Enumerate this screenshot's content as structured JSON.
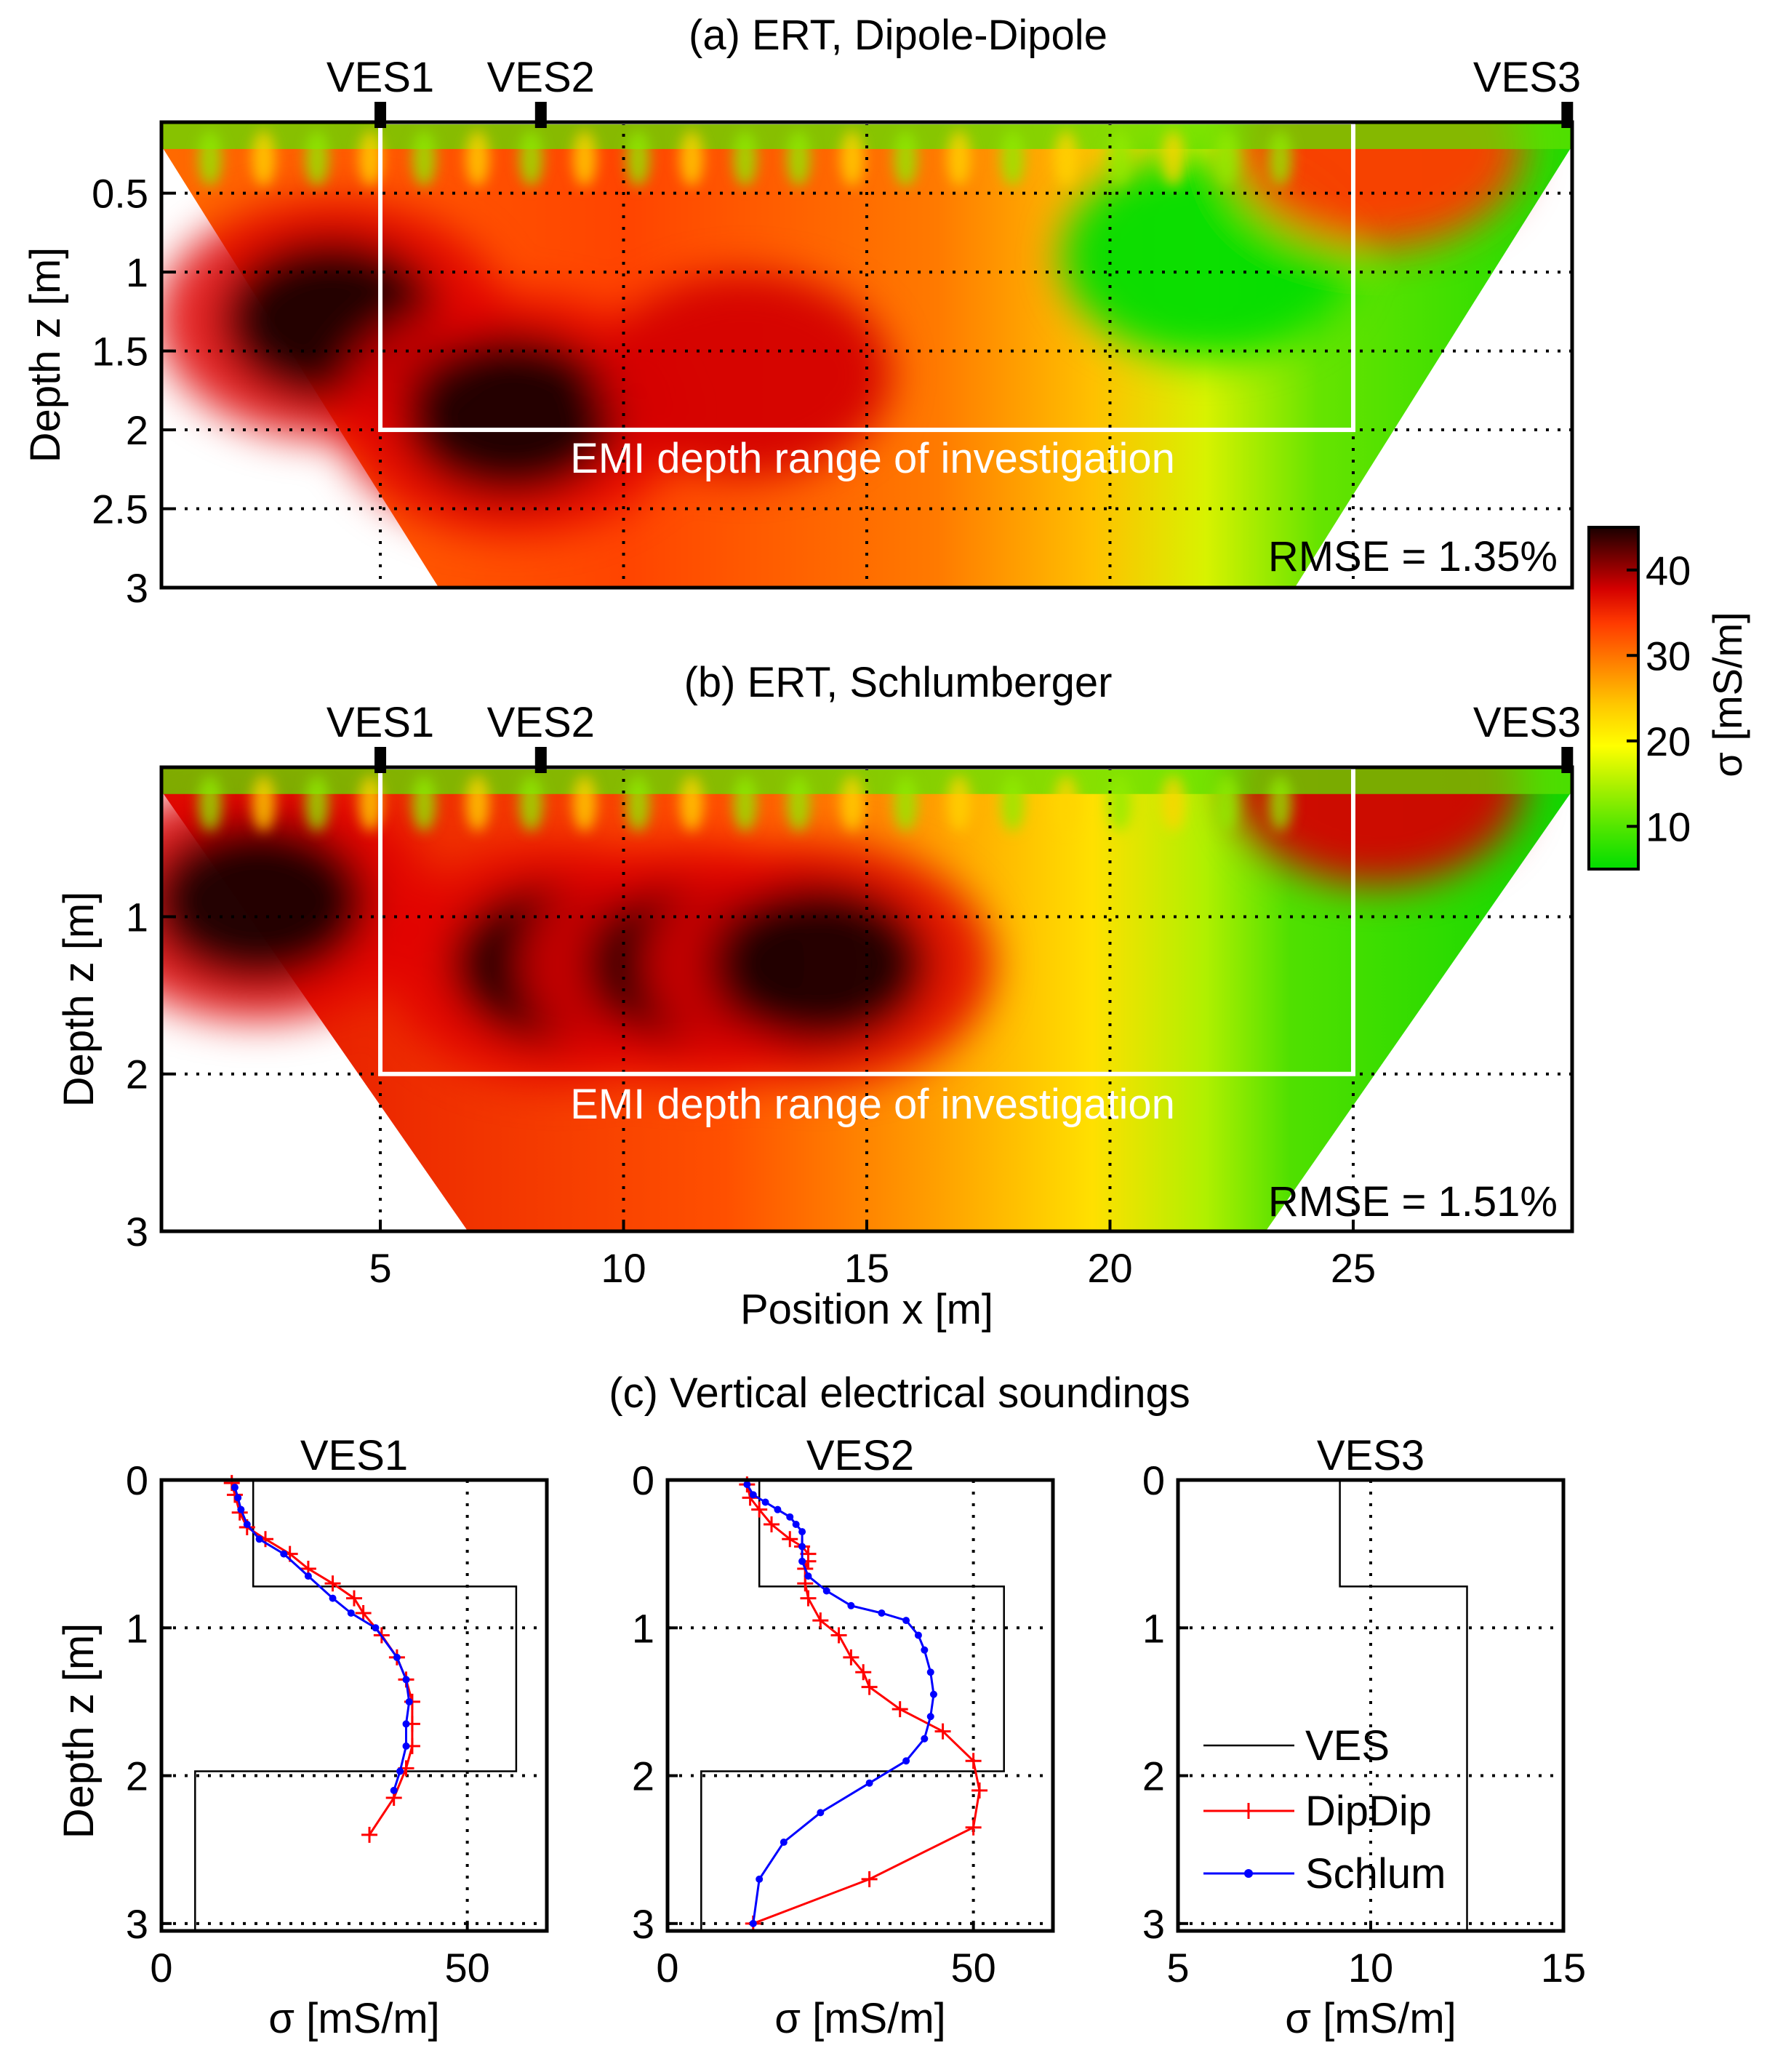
{
  "colors": {
    "ramp": [
      "#00dd00",
      "#50e600",
      "#a8f000",
      "#ffff00",
      "#ffc800",
      "#ff8200",
      "#ff3a00",
      "#d40000",
      "#780000",
      "#1a0000"
    ],
    "white": "#ffffff",
    "grid": "#000000",
    "ves": "#000000",
    "dipdip": "#ff0000",
    "schlum": "#0000ff"
  },
  "chart_data": [
    {
      "id": "a",
      "type": "heatmap",
      "title": "(a) ERT, Dipole-Dipole",
      "ylabel": "Depth z [m]",
      "xlabel": "",
      "xlim": [
        0.5,
        29.5
      ],
      "ylim": [
        3,
        0.05
      ],
      "yticks": [
        0.5,
        1,
        1.5,
        2,
        2.5,
        3
      ],
      "ytick_labels": [
        "0.5",
        "1",
        "1.5",
        "2",
        "2.5",
        "3"
      ],
      "xgrid": [
        5,
        10,
        15,
        20,
        25
      ],
      "ygrid": [
        0.5,
        1,
        1.5,
        2,
        2.5
      ],
      "ves_markers": [
        {
          "label": "VES1",
          "x": 5
        },
        {
          "label": "VES2",
          "x": 8.3
        },
        {
          "label": "VES3",
          "x": 29.4
        }
      ],
      "box": {
        "x": [
          5,
          25
        ],
        "z": [
          0.05,
          2
        ]
      },
      "box_label": "EMI depth range of investigation",
      "rmse": "RMSE = 1.35%",
      "section_left": [
        [
          0.5,
          0.2
        ],
        [
          6.2,
          3.0
        ]
      ],
      "section_right": [
        [
          29.5,
          0.2
        ],
        [
          23.8,
          3.0
        ]
      ],
      "conductivity_blobs_mS_per_m": [
        {
          "x": 4.0,
          "z": 1.3,
          "value": 45
        },
        {
          "x": 7.7,
          "z": 1.9,
          "value": 47
        },
        {
          "x": 12.5,
          "z": 1.65,
          "value": 38
        },
        {
          "x": 22.0,
          "z": 0.9,
          "value": 7
        },
        {
          "x": 25.5,
          "z": 0.2,
          "value": 30
        }
      ]
    },
    {
      "id": "b",
      "type": "heatmap",
      "title": "(b) ERT, Schlumberger",
      "ylabel": "Depth z [m]",
      "xlabel": "Position x [m]",
      "xlim": [
        0.5,
        29.5
      ],
      "ylim": [
        3,
        0.05
      ],
      "xticks": [
        5,
        10,
        15,
        20,
        25
      ],
      "xtick_labels": [
        "5",
        "10",
        "15",
        "20",
        "25"
      ],
      "yticks": [
        1,
        2,
        3
      ],
      "ytick_labels": [
        "1",
        "2",
        "3"
      ],
      "xgrid": [
        5,
        10,
        15,
        20,
        25
      ],
      "ygrid": [
        1,
        2
      ],
      "ves_markers": [
        {
          "label": "VES1",
          "x": 5
        },
        {
          "label": "VES2",
          "x": 8.3
        },
        {
          "label": "VES3",
          "x": 29.4
        }
      ],
      "box": {
        "x": [
          5,
          25
        ],
        "z": [
          0.05,
          2
        ]
      },
      "box_label": "EMI depth range of investigation",
      "rmse": "RMSE = 1.51%",
      "section_left": [
        [
          0.5,
          0.2
        ],
        [
          6.8,
          3.0
        ]
      ],
      "section_right": [
        [
          29.5,
          0.2
        ],
        [
          23.2,
          3.0
        ]
      ],
      "conductivity_blobs_mS_per_m": [
        {
          "x": 2.5,
          "z": 0.9,
          "value": 47
        },
        {
          "x": 8.7,
          "z": 1.3,
          "value": 47
        },
        {
          "x": 11.5,
          "z": 1.3,
          "value": 44
        },
        {
          "x": 14.0,
          "z": 1.3,
          "value": 44
        },
        {
          "x": 25.5,
          "z": 0.15,
          "value": 35
        }
      ]
    },
    {
      "id": "colorbar",
      "type": "colorbar",
      "label": "σ [mS/m]",
      "range": [
        5,
        45
      ],
      "ticks": [
        10,
        20,
        30,
        40
      ],
      "tick_labels": [
        "10",
        "20",
        "30",
        "40"
      ]
    },
    {
      "id": "c",
      "type": "line",
      "suptitle": "(c) Vertical electrical soundings",
      "ylabel": "Depth z [m]",
      "xlabel": "σ [mS/m]",
      "legend": {
        "placement": "inside VES3 panel, lower-right",
        "entries": [
          "VES",
          "DipDip",
          "Schlum"
        ]
      },
      "panels": [
        {
          "title": "VES1",
          "xlim": [
            0,
            63
          ],
          "xticks": [
            0,
            50
          ],
          "xtick_labels": [
            "0",
            "50"
          ],
          "xgrid": [
            50
          ],
          "ylim": [
            3.05,
            0
          ],
          "yticks": [
            0,
            1,
            2,
            3
          ],
          "ytick_labels": [
            "0",
            "1",
            "2",
            "3"
          ],
          "ygrid": [
            1,
            2,
            3
          ],
          "series": [
            {
              "name": "VES",
              "x": [
                15,
                15,
                58,
                58,
                5.5,
                5.5
              ],
              "z": [
                0,
                0.72,
                0.72,
                1.97,
                1.97,
                3.05
              ]
            },
            {
              "name": "DipDip",
              "x": [
                11.5,
                12,
                12.8,
                14,
                17,
                21,
                24,
                28,
                31.5,
                33,
                36,
                38.5,
                40,
                41,
                41,
                41,
                40,
                38,
                34
              ],
              "z": [
                0.02,
                0.1,
                0.22,
                0.32,
                0.4,
                0.5,
                0.6,
                0.7,
                0.8,
                0.9,
                1.05,
                1.2,
                1.35,
                1.5,
                1.65,
                1.8,
                1.95,
                2.15,
                2.4
              ]
            },
            {
              "name": "Schlum",
              "x": [
                12,
                12.5,
                13,
                14,
                16,
                20,
                24,
                28,
                31,
                35,
                38.5,
                40,
                40.5,
                40,
                40,
                39,
                38
              ],
              "z": [
                0.05,
                0.12,
                0.2,
                0.3,
                0.4,
                0.5,
                0.65,
                0.8,
                0.9,
                1.0,
                1.2,
                1.35,
                1.5,
                1.65,
                1.8,
                1.97,
                2.1
              ]
            }
          ]
        },
        {
          "title": "VES2",
          "xlim": [
            0,
            63
          ],
          "xticks": [
            0,
            50
          ],
          "xtick_labels": [
            "0",
            "50"
          ],
          "xgrid": [
            50
          ],
          "ylim": [
            3.05,
            0
          ],
          "yticks": [
            0,
            1,
            2,
            3
          ],
          "ytick_labels": [
            "0",
            "1",
            "2",
            "3"
          ],
          "ygrid": [
            1,
            2,
            3
          ],
          "series": [
            {
              "name": "VES",
              "x": [
                15,
                15,
                55,
                55,
                5.5,
                5.5
              ],
              "z": [
                0,
                0.72,
                0.72,
                1.97,
                1.97,
                3.05
              ]
            },
            {
              "name": "DipDip",
              "x": [
                13,
                13.5,
                15,
                17,
                20,
                22,
                23,
                23,
                22.5,
                22.5,
                23,
                25,
                28,
                30,
                32,
                33,
                38,
                45,
                50,
                51,
                50,
                33,
                14
              ],
              "z": [
                0.03,
                0.12,
                0.2,
                0.3,
                0.4,
                0.45,
                0.5,
                0.55,
                0.6,
                0.7,
                0.8,
                0.95,
                1.05,
                1.2,
                1.3,
                1.4,
                1.55,
                1.7,
                1.9,
                2.1,
                2.35,
                2.7,
                3.0
              ]
            },
            {
              "name": "Schlum",
              "x": [
                13,
                14,
                16,
                18,
                20,
                21,
                22,
                22,
                22,
                23,
                26,
                30,
                35,
                39,
                41,
                42,
                43,
                43.5,
                43,
                42,
                39,
                33,
                25,
                19,
                15,
                14
              ],
              "z": [
                0.03,
                0.1,
                0.15,
                0.2,
                0.25,
                0.3,
                0.35,
                0.45,
                0.55,
                0.65,
                0.75,
                0.85,
                0.9,
                0.95,
                1.05,
                1.15,
                1.3,
                1.45,
                1.6,
                1.75,
                1.9,
                2.05,
                2.25,
                2.45,
                2.7,
                3.0
              ]
            }
          ]
        },
        {
          "title": "VES3",
          "xlim": [
            5,
            15
          ],
          "xticks": [
            5,
            10,
            15
          ],
          "xtick_labels": [
            "5",
            "10",
            "15"
          ],
          "xgrid": [
            10
          ],
          "ylim": [
            3.05,
            0
          ],
          "yticks": [
            0,
            1,
            2,
            3
          ],
          "ytick_labels": [
            "0",
            "1",
            "2",
            "3"
          ],
          "ygrid": [
            1,
            2,
            3
          ],
          "series": [
            {
              "name": "VES",
              "x": [
                9.2,
                9.2,
                12.5,
                12.5
              ],
              "z": [
                0,
                0.72,
                0.72,
                3.05
              ]
            }
          ]
        }
      ]
    }
  ]
}
